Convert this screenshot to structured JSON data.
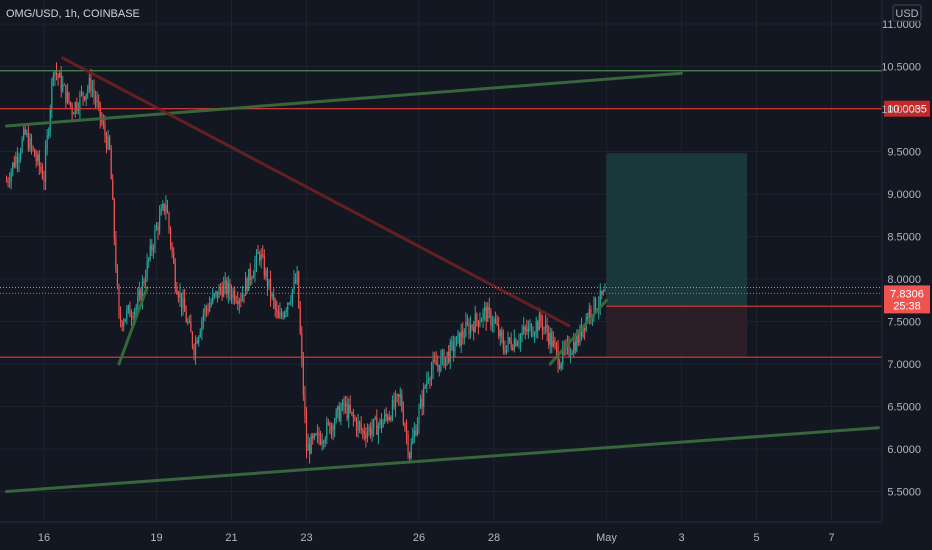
{
  "header": {
    "symbol_title": "OMG/USD, 1h, COINBASE"
  },
  "currency_badge": "USD",
  "colors": {
    "background": "#131722",
    "grid": "#1e222d",
    "up": "#26a69a",
    "down": "#ef5350",
    "trend_green": "#3b6e3f",
    "level_red": "#c62828",
    "trend_dark_red": "#6d2020",
    "target_zone": "#1c3b3e",
    "stop_zone": "#2f1f27",
    "axis_text": "#b2b5be"
  },
  "chart_data": {
    "type": "candlestick",
    "title": "OMG/USD, 1h, COINBASE",
    "y_scale_currency": "USD",
    "ylim": [
      5.1,
      11.45
    ],
    "y_ticks": [
      "11.0000",
      "10.5000",
      "10.0000",
      "9.5000",
      "9.0000",
      "8.5000",
      "8.0000",
      "7.5000",
      "7.0000",
      "6.5000",
      "6.0000",
      "5.5000"
    ],
    "x_ticks": [
      "16",
      "19",
      "21",
      "23",
      "26",
      "28",
      "May",
      "3",
      "5",
      "7"
    ],
    "x_range_days": [
      "Apr 15 00:00",
      "May 8 06:00"
    ],
    "price_labels": [
      {
        "text": "10.0035",
        "value": 10.0035,
        "color": "#c62828"
      },
      {
        "text": "7.8306",
        "sub": "25:38",
        "value": 7.8306,
        "color": "#ef5350"
      }
    ],
    "horizontal_levels": [
      {
        "value": 10.45,
        "color": "green"
      },
      {
        "value": 10.0035,
        "color": "red"
      },
      {
        "value": 7.08,
        "color": "red"
      },
      {
        "value": 7.68,
        "color": "red"
      }
    ],
    "trend_lines": [
      {
        "from": [
          "Apr 15 00:00",
          9.8
        ],
        "to": [
          "May 3 00:00",
          10.42
        ],
        "color": "green"
      },
      {
        "from": [
          "Apr 15 00:00",
          5.5
        ],
        "to": [
          "May 8 06:00",
          6.25
        ],
        "color": "green"
      },
      {
        "from": [
          "Apr 16 12:00",
          10.6
        ],
        "to": [
          "Apr 30 00:00",
          7.45
        ],
        "color": "dark-red"
      },
      {
        "from": [
          "Apr 18 00:00",
          7.0
        ],
        "to": [
          "Apr 18 18:00",
          7.9
        ],
        "color": "green"
      },
      {
        "from": [
          "Apr 29 12:00",
          7.0
        ],
        "to": [
          "May 1 00:00",
          7.75
        ],
        "color": "green"
      }
    ],
    "position_tool": {
      "entry": 7.68,
      "target": 9.48,
      "stop": 7.08,
      "from": "May 1 00:00",
      "to": "May 4 18:00"
    },
    "candles_key_points": [
      {
        "t": "Apr 15 00:00",
        "price": 9.15
      },
      {
        "t": "Apr 15 12:00",
        "price": 9.7
      },
      {
        "t": "Apr 16 00:00",
        "price": 9.2
      },
      {
        "t": "Apr 16 06:00",
        "price": 10.5
      },
      {
        "t": "Apr 16 18:00",
        "price": 10.0
      },
      {
        "t": "Apr 17 06:00",
        "price": 10.3
      },
      {
        "t": "Apr 17 18:00",
        "price": 9.5
      },
      {
        "t": "Apr 18 00:00",
        "price": 7.5
      },
      {
        "t": "Apr 18 12:00",
        "price": 7.7
      },
      {
        "t": "Apr 19 00:00",
        "price": 8.6
      },
      {
        "t": "Apr 19 06:00",
        "price": 8.9
      },
      {
        "t": "Apr 19 12:00",
        "price": 8.0
      },
      {
        "t": "Apr 20 00:00",
        "price": 7.2
      },
      {
        "t": "Apr 20 06:00",
        "price": 7.6
      },
      {
        "t": "Apr 20 18:00",
        "price": 7.9
      },
      {
        "t": "Apr 21 06:00",
        "price": 7.8
      },
      {
        "t": "Apr 21 18:00",
        "price": 8.3
      },
      {
        "t": "Apr 22 06:00",
        "price": 7.5
      },
      {
        "t": "Apr 22 18:00",
        "price": 8.0
      },
      {
        "t": "Apr 23 00:00",
        "price": 6.0
      },
      {
        "t": "Apr 23 12:00",
        "price": 6.2
      },
      {
        "t": "Apr 24 00:00",
        "price": 6.5
      },
      {
        "t": "Apr 24 12:00",
        "price": 6.2
      },
      {
        "t": "Apr 25 00:00",
        "price": 6.3
      },
      {
        "t": "Apr 25 12:00",
        "price": 6.6
      },
      {
        "t": "Apr 25 18:00",
        "price": 5.95
      },
      {
        "t": "Apr 26 06:00",
        "price": 6.9
      },
      {
        "t": "Apr 26 18:00",
        "price": 7.1
      },
      {
        "t": "Apr 27 06:00",
        "price": 7.4
      },
      {
        "t": "Apr 27 18:00",
        "price": 7.6
      },
      {
        "t": "Apr 28 00:00",
        "price": 7.5
      },
      {
        "t": "Apr 28 06:00",
        "price": 7.2
      },
      {
        "t": "Apr 28 18:00",
        "price": 7.35
      },
      {
        "t": "Apr 29 06:00",
        "price": 7.5
      },
      {
        "t": "Apr 29 12:00",
        "price": 7.3
      },
      {
        "t": "Apr 29 18:00",
        "price": 7.05
      },
      {
        "t": "Apr 30 06:00",
        "price": 7.3
      },
      {
        "t": "Apr 30 12:00",
        "price": 7.6
      },
      {
        "t": "May 1 00:00",
        "price": 7.83
      }
    ],
    "grid": true,
    "legend": "none"
  }
}
